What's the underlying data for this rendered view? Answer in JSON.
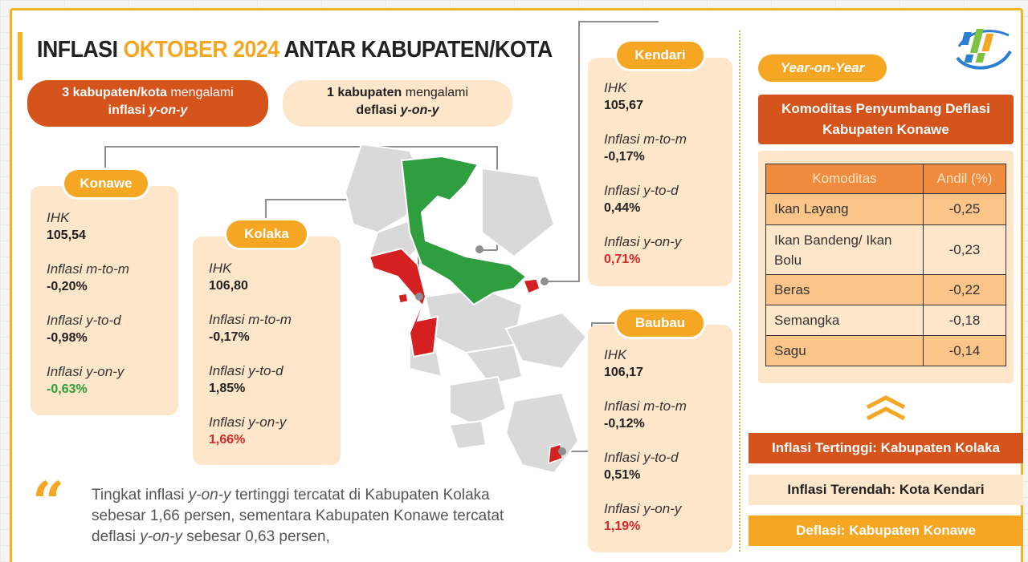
{
  "title": {
    "part1": "INFLASI ",
    "highlight": "OKTOBER 2024",
    "part2": " ANTAR KABUPATEN/KOTA"
  },
  "summary": {
    "inflasi": {
      "bold": "3 kabupaten/kota",
      "text1": " mengalami",
      "text2": "inflasi ",
      "term": "y-on-y"
    },
    "deflasi": {
      "bold": "1 kabupaten",
      "text1": " mengalami",
      "text2": "deflasi ",
      "term": "y-on-y"
    }
  },
  "labels": {
    "ihk": "IHK",
    "mtm": "Inflasi m-to-m",
    "ytd": "Inflasi y-to-d",
    "yoy": "Inflasi y-on-y"
  },
  "regions": {
    "konawe": {
      "name": "Konawe",
      "ihk": "105,54",
      "mtm": "-0,20%",
      "ytd": "-0,98%",
      "yoy": "-0,63%"
    },
    "kolaka": {
      "name": "Kolaka",
      "ihk": "106,80",
      "mtm": "-0,17%",
      "ytd": "1,85%",
      "yoy": "1,66%"
    },
    "kendari": {
      "name": "Kendari",
      "ihk": "105,67",
      "mtm": "-0,17%",
      "ytd": "0,44%",
      "yoy": "0,71%"
    },
    "baubau": {
      "name": "Baubau",
      "ihk": "106,17",
      "mtm": "-0,12%",
      "ytd": "0,51%",
      "yoy": "1,19%"
    }
  },
  "panel": {
    "yoy_label": "Year-on-Year",
    "heading_line1": "Komoditas Penyumbang Deflasi",
    "heading_line2": "Kabupaten Konawe",
    "table_headers": [
      "Komoditas",
      "Andil (%)"
    ],
    "rows": [
      {
        "name": "Ikan Layang",
        "value": "-0,25"
      },
      {
        "name": "Ikan Bandeng/ Ikan Bolu",
        "value": "-0,23"
      },
      {
        "name": "Beras",
        "value": "-0,22"
      },
      {
        "name": "Semangka",
        "value": "-0,18"
      },
      {
        "name": "Sagu",
        "value": "-0,14"
      }
    ],
    "highest": "Inflasi Tertinggi: Kabupaten Kolaka",
    "lowest": "Inflasi Terendah: Kota Kendari",
    "deflasi": "Deflasi: Kabupaten Konawe"
  },
  "quote": {
    "p1": "Tingkat inflasi ",
    "term1": "y-on-y",
    "p2": " tertinggi tercatat di Kabupaten Kolaka sebesar 1,66 persen, sementara Kabupaten Konawe tercatat deflasi ",
    "term2": "y-on-y",
    "p3": " sebesar 0,63 persen,"
  },
  "colors": {
    "accent": "#f5a623",
    "dark_orange": "#d4541c",
    "light": "#fde6c9",
    "inflation": "#d62828",
    "deflation": "#2e9c3a",
    "map_gray": "#d9d9d9"
  },
  "icons": [
    "bps-logo-icon",
    "double-chevron-up-icon",
    "quote-icon"
  ]
}
